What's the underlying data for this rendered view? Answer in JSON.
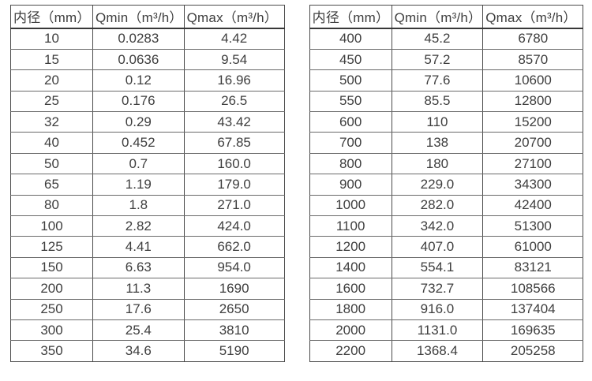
{
  "page": {
    "background_color": "#ffffff",
    "text_color": "#3e3e3e",
    "border_color": "#4a4a4a"
  },
  "tables": [
    {
      "name": "flow-table-small-diameters",
      "headers": [
        "内径（mm）",
        "Qmin（m³/h）",
        "Qmax（m³/h）"
      ],
      "rows": [
        [
          "10",
          "0.0283",
          "4.42"
        ],
        [
          "15",
          "0.0636",
          "9.54"
        ],
        [
          "20",
          "0.12",
          "16.96"
        ],
        [
          "25",
          "0.176",
          "26.5"
        ],
        [
          "32",
          "0.29",
          "43.42"
        ],
        [
          "40",
          "0.452",
          "67.85"
        ],
        [
          "50",
          "0.7",
          "160.0"
        ],
        [
          "65",
          "1.19",
          "179.0"
        ],
        [
          "80",
          "1.8",
          "271.0"
        ],
        [
          "100",
          "2.82",
          "424.0"
        ],
        [
          "125",
          "4.41",
          "662.0"
        ],
        [
          "150",
          "6.63",
          "954.0"
        ],
        [
          "200",
          "11.3",
          "1690"
        ],
        [
          "250",
          "17.6",
          "2650"
        ],
        [
          "300",
          "25.4",
          "3810"
        ],
        [
          "350",
          "34.6",
          "5190"
        ]
      ]
    },
    {
      "name": "flow-table-large-diameters",
      "headers": [
        "内径（mm）",
        "Qmin（m³/h）",
        "Qmax（m³/h）"
      ],
      "rows": [
        [
          "400",
          "45.2",
          "6780"
        ],
        [
          "450",
          "57.2",
          "8570"
        ],
        [
          "500",
          "77.6",
          "10600"
        ],
        [
          "550",
          "85.5",
          "12800"
        ],
        [
          "600",
          "110",
          "15200"
        ],
        [
          "700",
          "138",
          "20700"
        ],
        [
          "800",
          "180",
          "27100"
        ],
        [
          "900",
          "229.0",
          "34300"
        ],
        [
          "1000",
          "282.0",
          "42400"
        ],
        [
          "1100",
          "342.0",
          "51300"
        ],
        [
          "1200",
          "407.0",
          "61000"
        ],
        [
          "1400",
          "554.1",
          "83121"
        ],
        [
          "1600",
          "732.7",
          "108566"
        ],
        [
          "1800",
          "916.0",
          "137404"
        ],
        [
          "2000",
          "1131.0",
          "169635"
        ],
        [
          "2200",
          "1368.4",
          "205258"
        ]
      ]
    }
  ]
}
